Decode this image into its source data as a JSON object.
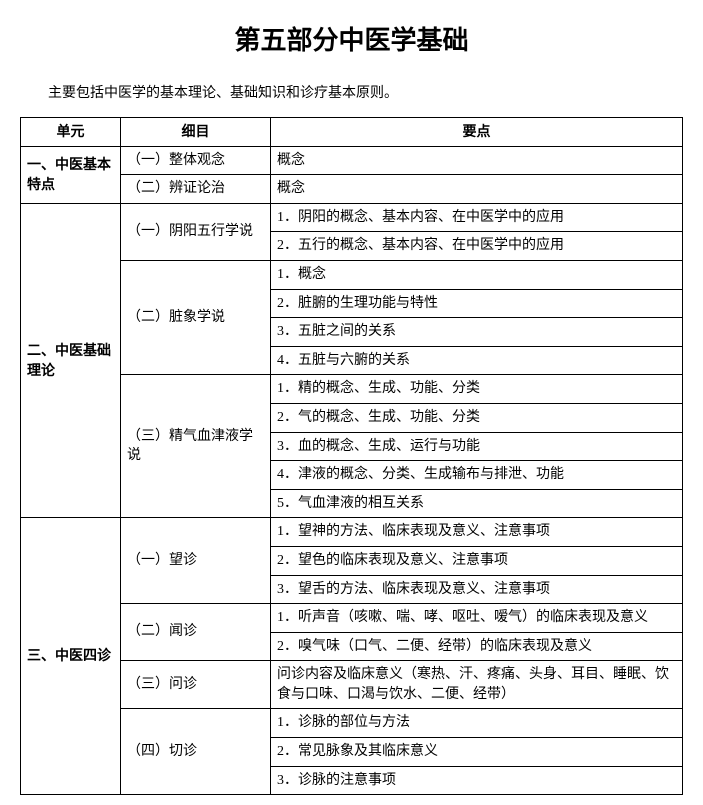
{
  "title": "第五部分中医学基础",
  "intro": "主要包括中医学的基本理论、基础知识和诊疗基本原则。",
  "headers": {
    "unit": "单元",
    "detail": "细目",
    "point": "要点"
  },
  "sections": {
    "s1": {
      "unit": "一、中医基本特点",
      "d1": "（一）整体观念",
      "p1": "概念",
      "d2": "（二）辨证论治",
      "p2": "概念"
    },
    "s2": {
      "unit": "二、中医基础理论",
      "d1": "（一）阴阳五行学说",
      "p1_1": "1．阴阳的概念、基本内容、在中医学中的应用",
      "p1_2": "2．五行的概念、基本内容、在中医学中的应用",
      "d2": "（二）脏象学说",
      "p2_1": "1．概念",
      "p2_2": "2．脏腑的生理功能与特性",
      "p2_3": "3．五脏之间的关系",
      "p2_4": "4．五脏与六腑的关系",
      "d3": "（三）精气血津液学说",
      "p3_1": "1．精的概念、生成、功能、分类",
      "p3_2": "2．气的概念、生成、功能、分类",
      "p3_3": "3．血的概念、生成、运行与功能",
      "p3_4": "4．津液的概念、分类、生成输布与排泄、功能",
      "p3_5": "5．气血津液的相互关系"
    },
    "s3": {
      "unit": "三、中医四诊",
      "d1": "（一）望诊",
      "p1_1": "1．望神的方法、临床表现及意义、注意事项",
      "p1_2": "2．望色的临床表现及意义、注意事项",
      "p1_3": "3．望舌的方法、临床表现及意义、注意事项",
      "d2": "（二）闻诊",
      "p2_1": "1．听声音（咳嗽、喘、哮、呕吐、嗳气）的临床表现及意义",
      "p2_2": "2．嗅气味（口气、二便、经带）的临床表现及意义",
      "d3": "（三）问诊",
      "p3_1": "问诊内容及临床意义（寒热、汗、疼痛、头身、耳目、睡眠、饮食与口味、口渴与饮水、二便、经带）",
      "d4": "（四）切诊",
      "p4_1": "1．诊脉的部位与方法",
      "p4_2": "2．常见脉象及其临床意义",
      "p4_3": "3．诊脉的注意事项"
    }
  }
}
